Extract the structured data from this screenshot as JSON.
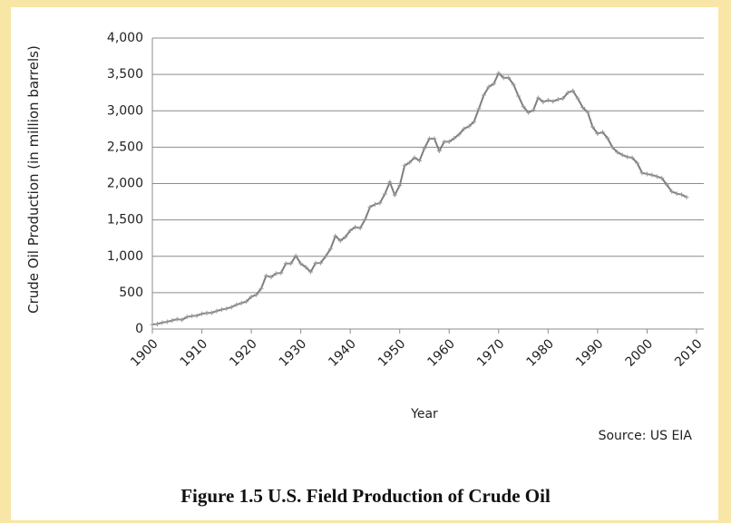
{
  "chart_data": {
    "type": "line",
    "caption": "Figure 1.5 U.S. Field Production of Crude Oil",
    "source": "Source: US EIA",
    "xlabel": "Year",
    "ylabel": "Crude Oil Production (in million barrels)",
    "x": [
      1900,
      1901,
      1902,
      1903,
      1904,
      1905,
      1906,
      1907,
      1908,
      1909,
      1910,
      1911,
      1912,
      1913,
      1914,
      1915,
      1916,
      1917,
      1918,
      1919,
      1920,
      1921,
      1922,
      1923,
      1924,
      1925,
      1926,
      1927,
      1928,
      1929,
      1930,
      1931,
      1932,
      1933,
      1934,
      1935,
      1936,
      1937,
      1938,
      1939,
      1940,
      1941,
      1942,
      1943,
      1944,
      1945,
      1946,
      1947,
      1948,
      1949,
      1950,
      1951,
      1952,
      1953,
      1954,
      1955,
      1956,
      1957,
      1958,
      1959,
      1960,
      1961,
      1962,
      1963,
      1964,
      1965,
      1966,
      1967,
      1968,
      1969,
      1970,
      1971,
      1972,
      1973,
      1974,
      1975,
      1976,
      1977,
      1978,
      1979,
      1980,
      1981,
      1982,
      1983,
      1984,
      1985,
      1986,
      1987,
      1988,
      1989,
      1990,
      1991,
      1992,
      1993,
      1994,
      1995,
      1996,
      1997,
      1998,
      1999,
      2000,
      2001,
      2002,
      2003,
      2004,
      2005,
      2006,
      2007,
      2008
    ],
    "series": [
      {
        "name": "Crude Oil Production",
        "color": "#7f7f7f",
        "values": [
          63,
          69,
          89,
          100,
          117,
          135,
          126,
          166,
          179,
          183,
          210,
          220,
          223,
          248,
          266,
          281,
          301,
          335,
          356,
          378,
          443,
          472,
          558,
          732,
          714,
          764,
          771,
          901,
          901,
          1007,
          898,
          851,
          785,
          906,
          908,
          997,
          1100,
          1279,
          1214,
          1265,
          1353,
          1402,
          1387,
          1506,
          1678,
          1714,
          1733,
          1857,
          2020,
          1842,
          1974,
          2248,
          2290,
          2357,
          2315,
          2484,
          2617,
          2617,
          2449,
          2575,
          2575,
          2622,
          2676,
          2753,
          2787,
          2849,
          3028,
          3216,
          3329,
          3372,
          3517,
          3454,
          3455,
          3361,
          3203,
          3057,
          2976,
          3009,
          3178,
          3121,
          3146,
          3129,
          3157,
          3171,
          3250,
          3275,
          3168,
          3047,
          2979,
          2779,
          2685,
          2707,
          2625,
          2499,
          2431,
          2394,
          2366,
          2355,
          2282,
          2147,
          2131,
          2118,
          2097,
          2073,
          1983,
          1890,
          1862,
          1848,
          1812
        ]
      }
    ],
    "xlim": [
      1900,
      2010
    ],
    "xticks": [
      1900,
      1910,
      1920,
      1930,
      1940,
      1950,
      1960,
      1970,
      1980,
      1990,
      2000,
      2010
    ],
    "ylim": [
      0,
      4000
    ],
    "yticks": [
      0,
      {
        "value": 500,
        "label": "500"
      },
      {
        "value": 1000,
        "label": "1,000"
      },
      {
        "value": 1500,
        "label": "1,500"
      },
      {
        "value": 2000,
        "label": "2,000"
      },
      {
        "value": 2500,
        "label": "2,500"
      },
      {
        "value": 3000,
        "label": "3,000"
      },
      {
        "value": 3500,
        "label": "3,500"
      },
      {
        "value": 4000,
        "label": "4,000"
      }
    ],
    "grid": true
  }
}
